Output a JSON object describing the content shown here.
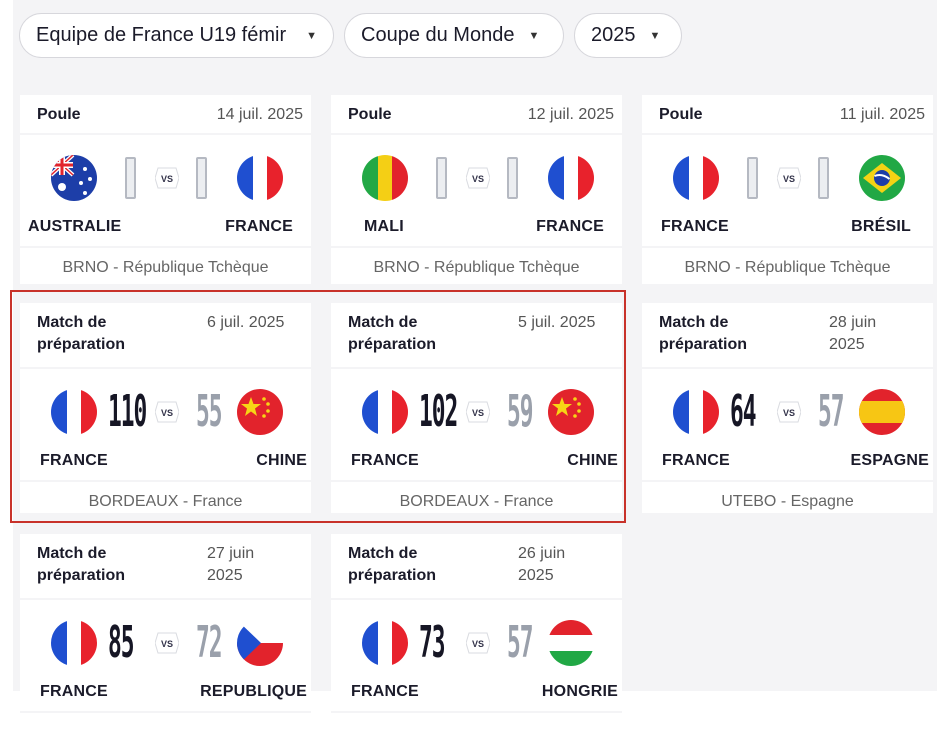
{
  "filters": {
    "team": "Equipe de France U19 fémir",
    "competition": "Coupe du Monde",
    "year": "2025"
  },
  "vs_label": "VS",
  "matches": [
    {
      "competition": "Poule",
      "date": "14 juil. 2025",
      "home": "AUSTRALIE",
      "away": "FRANCE",
      "home_score": "",
      "away_score": "",
      "venue": "BRNO - République Tchèque",
      "home_flag": "australia-flag-icon",
      "away_flag": "france-flag-icon"
    },
    {
      "competition": "Poule",
      "date": "12 juil. 2025",
      "home": "MALI",
      "away": "FRANCE",
      "home_score": "",
      "away_score": "",
      "venue": "BRNO - République Tchèque",
      "home_flag": "mali-flag-icon",
      "away_flag": "france-flag-icon"
    },
    {
      "competition": "Poule",
      "date": "11 juil. 2025",
      "home": "FRANCE",
      "away": "BRÉSIL",
      "home_score": "",
      "away_score": "",
      "venue": "BRNO - République Tchèque",
      "home_flag": "france-flag-icon",
      "away_flag": "brazil-flag-icon"
    },
    {
      "competition": "Match de préparation",
      "date": "6 juil. 2025",
      "home": "FRANCE",
      "away": "CHINE",
      "home_score": "110",
      "away_score": "55",
      "venue": "BORDEAUX - France",
      "home_flag": "france-flag-icon",
      "away_flag": "china-flag-icon"
    },
    {
      "competition": "Match de préparation",
      "date": "5 juil. 2025",
      "home": "FRANCE",
      "away": "CHINE",
      "home_score": "102",
      "away_score": "59",
      "venue": "BORDEAUX - France",
      "home_flag": "france-flag-icon",
      "away_flag": "china-flag-icon"
    },
    {
      "competition": "Match de préparation",
      "date": "28 juin 2025",
      "home": "FRANCE",
      "away": "ESPAGNE",
      "home_score": "64",
      "away_score": "57",
      "venue": "UTEBO - Espagne",
      "home_flag": "france-flag-icon",
      "away_flag": "spain-flag-icon"
    },
    {
      "competition": "Match de préparation",
      "date": "27 juin 2025",
      "home": "FRANCE",
      "away": "REPUBLIQUE",
      "home_score": "85",
      "away_score": "72",
      "venue": "",
      "home_flag": "france-flag-icon",
      "away_flag": "czech-flag-icon"
    },
    {
      "competition": "Match de préparation",
      "date": "26 juin 2025",
      "home": "FRANCE",
      "away": "HONGRIE",
      "home_score": "73",
      "away_score": "57",
      "venue": "",
      "home_flag": "france-flag-icon",
      "away_flag": "hungary-flag-icon"
    }
  ],
  "colors": {
    "highlight": "#c8322a",
    "winner_score": "#161625",
    "loser_score": "#9aa0ab"
  }
}
